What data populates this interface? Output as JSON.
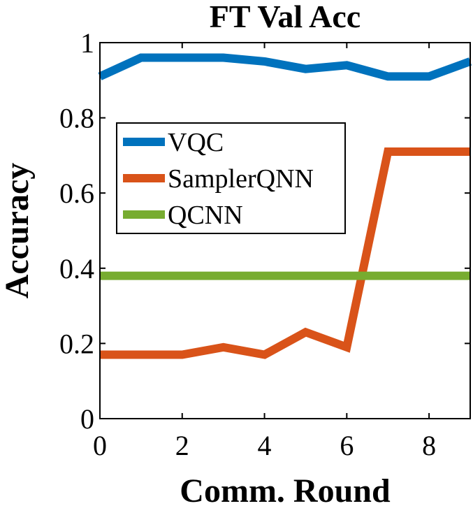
{
  "chart_data": {
    "type": "line",
    "title": "FT Val Acc",
    "xlabel": "Comm. Round",
    "ylabel": "Accuracy",
    "xlim": [
      0,
      9
    ],
    "ylim": [
      0,
      1
    ],
    "xticks": [
      0,
      2,
      4,
      6,
      8
    ],
    "yticks": [
      0,
      0.2,
      0.4,
      0.6,
      0.8,
      1
    ],
    "ytick_labels": [
      "0",
      "0.2",
      "0.4",
      "0.6",
      "0.8",
      "1"
    ],
    "grid": false,
    "legend_position": "upper-left",
    "x": [
      0,
      1,
      2,
      3,
      4,
      5,
      6,
      7,
      8,
      9
    ],
    "series": [
      {
        "name": "VQC",
        "color": "#0072BD",
        "values": [
          0.91,
          0.96,
          0.96,
          0.96,
          0.95,
          0.93,
          0.94,
          0.91,
          0.91,
          0.95
        ]
      },
      {
        "name": "SamplerQNN",
        "color": "#D95319",
        "values": [
          0.17,
          0.17,
          0.17,
          0.19,
          0.17,
          0.23,
          0.19,
          0.71,
          0.71,
          0.71
        ]
      },
      {
        "name": "QCNN",
        "color": "#77AC30",
        "values": [
          0.38,
          0.38,
          0.38,
          0.38,
          0.38,
          0.38,
          0.38,
          0.38,
          0.38,
          0.38
        ]
      }
    ]
  }
}
